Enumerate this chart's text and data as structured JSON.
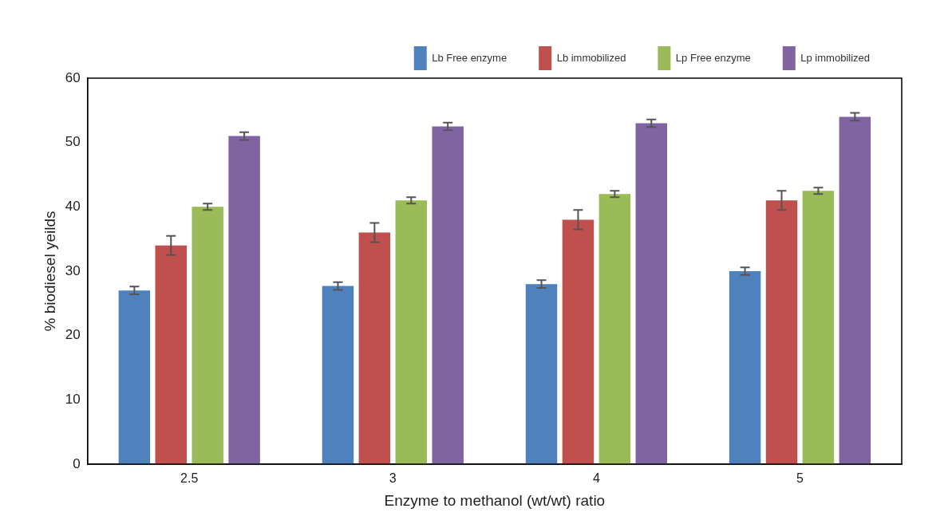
{
  "chart_data": {
    "type": "bar",
    "xlabel": "Enzyme to methanol (wt/wt) ratio",
    "ylabel": "% biodiesel yeilds",
    "categories": [
      "2.5",
      "3",
      "4",
      "5"
    ],
    "series": [
      {
        "name": "Lb Free enzyme",
        "color": "#4f81bd",
        "values": [
          27,
          27.7,
          28,
          30
        ],
        "errors": [
          0.6,
          0.6,
          0.6,
          0.6
        ]
      },
      {
        "name": "Lb immobilized",
        "color": "#c0504d",
        "values": [
          34,
          36,
          38,
          41
        ],
        "errors": [
          1.5,
          1.5,
          1.5,
          1.5
        ]
      },
      {
        "name": "Lp Free enzyme",
        "color": "#9bbb59",
        "values": [
          40,
          41,
          42,
          42.5
        ],
        "errors": [
          0.5,
          0.5,
          0.5,
          0.5
        ]
      },
      {
        "name": "Lp immobilized",
        "color": "#8064a2",
        "values": [
          51,
          52.5,
          53,
          54
        ],
        "errors": [
          0.6,
          0.6,
          0.6,
          0.6
        ]
      }
    ],
    "ylim": [
      0,
      60
    ],
    "yticks": [
      0,
      10,
      20,
      30,
      40,
      50,
      60
    ],
    "grid": false,
    "legend": "top right"
  }
}
